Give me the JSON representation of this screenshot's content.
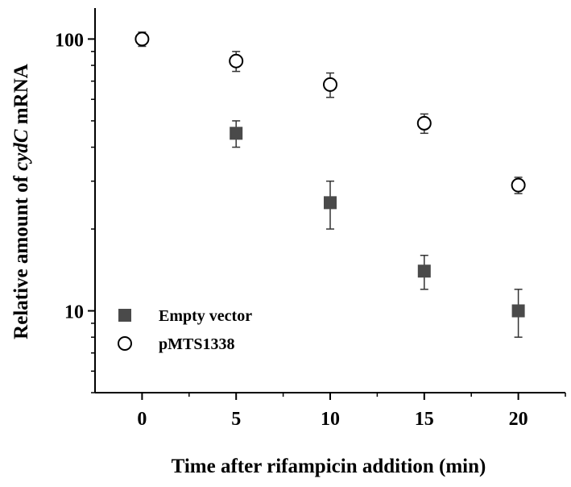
{
  "chart_data": {
    "type": "scatter",
    "xlabel": "Time after rifampicin addition (min)",
    "ylabel_parts": [
      "Relative amount of ",
      "cydC",
      " mRNA"
    ],
    "x": [
      0,
      5,
      10,
      15,
      20
    ],
    "xticks": [
      "0",
      "5",
      "10",
      "15",
      "20"
    ],
    "xlim": [
      -2.5,
      22.5
    ],
    "yscale": "log",
    "ylim": [
      5,
      130
    ],
    "yticks": [
      "10",
      "100"
    ],
    "grid": false,
    "legend_position": "bottom-left",
    "series": [
      {
        "name": "Empty vector",
        "marker": "filled-square",
        "color": "#4a4a4a",
        "points": [
          {
            "x": 5,
            "y": 45,
            "err_low": 40,
            "err_high": 50
          },
          {
            "x": 10,
            "y": 25,
            "err_low": 20,
            "err_high": 30
          },
          {
            "x": 15,
            "y": 14,
            "err_low": 12,
            "err_high": 16
          },
          {
            "x": 20,
            "y": 10,
            "err_low": 8,
            "err_high": 12
          }
        ]
      },
      {
        "name": "pMTS1338",
        "marker": "open-circle",
        "color": "#000000",
        "points": [
          {
            "x": 0,
            "y": 100,
            "err_low": 94,
            "err_high": 106
          },
          {
            "x": 5,
            "y": 83,
            "err_low": 76,
            "err_high": 90
          },
          {
            "x": 10,
            "y": 68,
            "err_low": 61,
            "err_high": 75
          },
          {
            "x": 15,
            "y": 49,
            "err_low": 45,
            "err_high": 53
          },
          {
            "x": 20,
            "y": 29,
            "err_low": 27,
            "err_high": 31
          }
        ]
      }
    ]
  }
}
